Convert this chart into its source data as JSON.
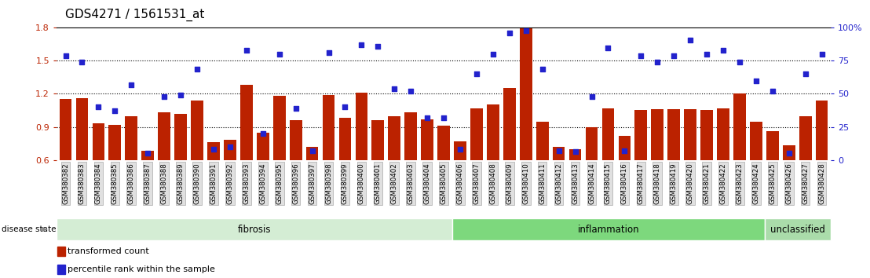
{
  "title": "GDS4271 / 1561531_at",
  "categories": [
    "GSM380382",
    "GSM380383",
    "GSM380384",
    "GSM380385",
    "GSM380386",
    "GSM380387",
    "GSM380388",
    "GSM380389",
    "GSM380390",
    "GSM380391",
    "GSM380392",
    "GSM380393",
    "GSM380394",
    "GSM380395",
    "GSM380396",
    "GSM380397",
    "GSM380398",
    "GSM380399",
    "GSM380400",
    "GSM380401",
    "GSM380402",
    "GSM380403",
    "GSM380404",
    "GSM380405",
    "GSM380406",
    "GSM380407",
    "GSM380408",
    "GSM380409",
    "GSM380410",
    "GSM380411",
    "GSM380412",
    "GSM380413",
    "GSM380414",
    "GSM380415",
    "GSM380416",
    "GSM380417",
    "GSM380418",
    "GSM380419",
    "GSM380420",
    "GSM380421",
    "GSM380422",
    "GSM380423",
    "GSM380424",
    "GSM380425",
    "GSM380426",
    "GSM380427",
    "GSM380428"
  ],
  "bar_values": [
    1.15,
    1.16,
    0.93,
    0.92,
    1.0,
    0.68,
    1.03,
    1.02,
    1.14,
    0.76,
    0.78,
    1.28,
    0.85,
    1.18,
    0.96,
    0.72,
    1.19,
    0.98,
    1.21,
    0.96,
    1.0,
    1.03,
    0.97,
    0.91,
    0.77,
    1.07,
    1.1,
    1.25,
    1.8,
    0.95,
    0.72,
    0.7,
    0.9,
    1.07,
    0.82,
    1.05,
    1.06,
    1.06,
    1.06,
    1.05,
    1.07,
    1.2,
    0.95,
    0.86,
    0.73,
    1.0,
    1.14
  ],
  "dot_percentiles": [
    79,
    74,
    40,
    37,
    57,
    5,
    48,
    49,
    69,
    8,
    10,
    83,
    20,
    80,
    39,
    7,
    81,
    40,
    87,
    86,
    54,
    52,
    32,
    32,
    8,
    65,
    80,
    96,
    98,
    69,
    7,
    6,
    48,
    85,
    7,
    79,
    74,
    79,
    91,
    80,
    83,
    74,
    60,
    52,
    5,
    65,
    80
  ],
  "disease_groups": [
    {
      "label": "fibrosis",
      "start": 0,
      "end": 23,
      "color": "#d4edd4"
    },
    {
      "label": "inflammation",
      "start": 24,
      "end": 42,
      "color": "#7dd87d"
    },
    {
      "label": "unclassified",
      "start": 43,
      "end": 46,
      "color": "#aadcaa"
    }
  ],
  "bar_color": "#bb2200",
  "dot_color": "#2222cc",
  "ylim_left": [
    0.6,
    1.8
  ],
  "yticks_left": [
    0.6,
    0.9,
    1.2,
    1.5,
    1.8
  ],
  "ylim_right": [
    0,
    100
  ],
  "yticks_right": [
    0,
    25,
    50,
    75,
    100
  ],
  "hlines": [
    0.9,
    1.2,
    1.5
  ],
  "bg_color": "#ffffff",
  "bar_width": 0.75
}
